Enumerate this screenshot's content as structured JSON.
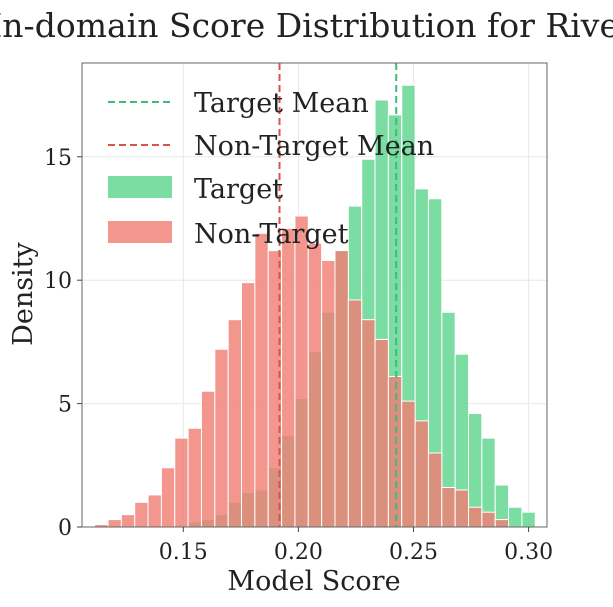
{
  "chart_data": {
    "type": "histogram",
    "title": "In-domain Score Distribution for River",
    "xlabel": "Model Score",
    "ylabel": "Density",
    "xlim": [
      0.106,
      0.308
    ],
    "ylim": [
      0,
      18.8
    ],
    "xticks": [
      0.15,
      0.2,
      0.25,
      0.3
    ],
    "xtick_labels": [
      "0.15",
      "0.20",
      "0.25",
      "0.30"
    ],
    "yticks": [
      0,
      5,
      10,
      15
    ],
    "ytick_labels": [
      "0",
      "5",
      "10",
      "15"
    ],
    "grid": true,
    "legend_position": "upper-left",
    "bin_start": 0.1115,
    "bin_width": 0.0058,
    "series": [
      {
        "name": "Target",
        "kind": "histogram",
        "color": "#5fd68f",
        "start_bin": 7,
        "values": [
          0.2,
          0.3,
          0.5,
          1.0,
          1.4,
          1.5,
          2.4,
          3.7,
          5.2,
          7.1,
          8.7,
          11.2,
          13.0,
          14.9,
          17.3,
          16.7,
          17.9,
          13.7,
          13.3,
          8.7,
          7.0,
          4.6,
          3.6,
          1.7,
          0.8,
          0.6
        ]
      },
      {
        "name": "Non-Target",
        "kind": "histogram",
        "color": "#ef7f75",
        "start_bin": 0,
        "values": [
          0.1,
          0.3,
          0.5,
          1.0,
          1.3,
          2.4,
          3.6,
          4.0,
          5.5,
          7.2,
          8.4,
          9.9,
          11.9,
          11.2,
          12.1,
          12.6,
          11.5,
          10.8,
          11.2,
          9.2,
          8.4,
          7.6,
          6.1,
          5.1,
          4.3,
          3.0,
          1.6,
          1.5,
          0.8,
          0.6,
          0.3
        ]
      },
      {
        "name": "Target Mean",
        "kind": "vline",
        "style": "dashed",
        "color": "#3fbb78",
        "x": 0.2425
      },
      {
        "name": "Non-Target Mean",
        "kind": "vline",
        "style": "dashed",
        "color": "#d9554a",
        "x": 0.1918
      }
    ],
    "legend_order": [
      "Target Mean",
      "Non-Target Mean",
      "Target",
      "Non-Target"
    ]
  }
}
